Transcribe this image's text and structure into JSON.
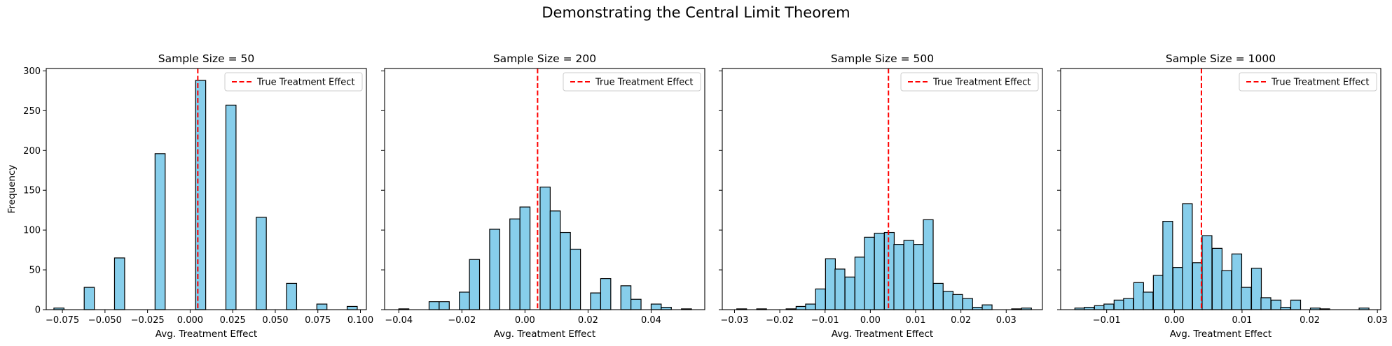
{
  "suptitle": "Demonstrating the Central Limit Theorem",
  "colors": {
    "bar_fill": "#87ceeb",
    "bar_edge": "#000000",
    "true_line": "#ff0000"
  },
  "chart_data": [
    {
      "type": "bar",
      "title": "Sample Size = 50",
      "xlabel": "Avg. Treatment Effect",
      "ylabel": "Frequency",
      "xlim": [
        -0.0845,
        0.1035
      ],
      "ylim": [
        0,
        303
      ],
      "xticks": [
        -0.075,
        -0.05,
        -0.025,
        0.0,
        0.025,
        0.05,
        0.075,
        0.1
      ],
      "xtick_labels": [
        "−0.075",
        "−0.050",
        "−0.025",
        "0.000",
        "0.025",
        "0.050",
        "0.075",
        "0.100"
      ],
      "yticks": [
        0,
        50,
        100,
        150,
        200,
        250,
        300
      ],
      "ytick_labels": [
        "0",
        "50",
        "100",
        "150",
        "200",
        "250",
        "300"
      ],
      "show_y_tick_labels": true,
      "bin_width": 0.00594,
      "bins_left": [
        -0.08,
        -0.0622,
        -0.0444,
        -0.0206,
        0.0032,
        0.021,
        0.0388,
        0.0566,
        0.0744,
        0.0922
      ],
      "values": [
        2,
        28,
        65,
        196,
        288,
        257,
        116,
        33,
        7,
        4
      ],
      "true_effect": 0.0045,
      "legend": "True Treatment Effect",
      "legend_position": "upper right"
    },
    {
      "type": "bar",
      "title": "Sample Size = 200",
      "xlabel": "Avg. Treatment Effect",
      "ylabel": "",
      "xlim": [
        -0.0445,
        0.057
      ],
      "ylim": [
        0,
        303
      ],
      "xticks": [
        -0.04,
        -0.02,
        0.0,
        0.02,
        0.04
      ],
      "xtick_labels": [
        "−0.04",
        "−0.02",
        "0.00",
        "0.02",
        "0.04"
      ],
      "yticks": [
        0,
        50,
        100,
        150,
        200,
        250,
        300
      ],
      "ytick_labels": [
        "",
        "",
        "",
        "",
        "",
        "",
        ""
      ],
      "show_y_tick_labels": false,
      "bin_width": 0.0032,
      "bins_left": [
        -0.04,
        -0.0368,
        -0.0336,
        -0.0304,
        -0.0272,
        -0.024,
        -0.0208,
        -0.0176,
        -0.0144,
        -0.0112,
        -0.008,
        -0.0048,
        -0.0016,
        0.0016,
        0.0048,
        0.008,
        0.0112,
        0.0144,
        0.0176,
        0.0208,
        0.024,
        0.0272,
        0.0304,
        0.0336,
        0.0368,
        0.04,
        0.0432,
        0.0464,
        0.0496
      ],
      "values": [
        1,
        0,
        0,
        10,
        10,
        0,
        22,
        63,
        0,
        101,
        0,
        114,
        129,
        0,
        154,
        124,
        97,
        76,
        0,
        21,
        39,
        0,
        30,
        13,
        0,
        7,
        3,
        0,
        1
      ],
      "true_effect": 0.004,
      "legend": "True Treatment Effect",
      "legend_position": "upper right"
    },
    {
      "type": "bar",
      "title": "Sample Size = 500",
      "xlabel": "Avg. Treatment Effect",
      "ylabel": "",
      "xlim": [
        -0.0327,
        0.038
      ],
      "ylim": [
        0,
        303
      ],
      "xticks": [
        -0.03,
        -0.02,
        -0.01,
        0.0,
        0.01,
        0.02,
        0.03
      ],
      "xtick_labels": [
        "−0.03",
        "−0.02",
        "−0.01",
        "0.00",
        "0.01",
        "0.02",
        "0.03"
      ],
      "yticks": [
        0,
        50,
        100,
        150,
        200,
        250,
        300
      ],
      "ytick_labels": [
        "",
        "",
        "",
        "",
        "",
        "",
        ""
      ],
      "show_y_tick_labels": false,
      "bin_width": 0.00217,
      "bins_left": [
        -0.0295,
        -0.0273,
        -0.0251,
        -0.0229,
        -0.0208,
        -0.0186,
        -0.0164,
        -0.0143,
        -0.0121,
        -0.0099,
        -0.0078,
        -0.0056,
        -0.0034,
        -0.0013,
        0.0009,
        0.0031,
        0.0052,
        0.0074,
        0.0096,
        0.0117,
        0.0139,
        0.0161,
        0.0182,
        0.0204,
        0.0226,
        0.0247,
        0.0269,
        0.0291,
        0.0312,
        0.0334
      ],
      "values": [
        1,
        0,
        1,
        0,
        0,
        1,
        4,
        7,
        26,
        64,
        51,
        41,
        66,
        91,
        96,
        97,
        82,
        87,
        82,
        113,
        33,
        23,
        19,
        14,
        3,
        6,
        0,
        0,
        1,
        2
      ],
      "true_effect": 0.004,
      "legend": "True Treatment Effect",
      "legend_position": "upper right"
    },
    {
      "type": "bar",
      "title": "Sample Size = 1000",
      "xlabel": "Avg. Treatment Effect",
      "ylabel": "",
      "xlim": [
        -0.0168,
        0.0305
      ],
      "ylim": [
        0,
        303
      ],
      "xticks": [
        -0.01,
        0.0,
        0.01,
        0.02,
        0.03
      ],
      "xtick_labels": [
        "−0.01",
        "0.00",
        "0.01",
        "0.02",
        "0.03"
      ],
      "yticks": [
        0,
        50,
        100,
        150,
        200,
        250,
        300
      ],
      "ytick_labels": [
        "",
        "",
        "",
        "",
        "",
        "",
        ""
      ],
      "show_y_tick_labels": false,
      "bin_width": 0.00145,
      "bins_left": [
        -0.0147,
        -0.0133,
        -0.0118,
        -0.0104,
        -0.0089,
        -0.0075,
        -0.006,
        -0.0046,
        -0.0031,
        -0.0017,
        -0.0002,
        0.0012,
        0.0027,
        0.0041,
        0.0056,
        0.007,
        0.0085,
        0.0099,
        0.0114,
        0.0128,
        0.0143,
        0.0157,
        0.0172,
        0.0186,
        0.0201,
        0.0215,
        0.023,
        0.0244,
        0.0259,
        0.0273
      ],
      "values": [
        2,
        3,
        5,
        7,
        12,
        14,
        34,
        22,
        43,
        111,
        53,
        133,
        59,
        93,
        77,
        49,
        70,
        28,
        52,
        15,
        12,
        3,
        12,
        0,
        2,
        1,
        0,
        0,
        0,
        2
      ],
      "true_effect": 0.004,
      "legend": "True Treatment Effect",
      "legend_position": "upper right"
    }
  ]
}
